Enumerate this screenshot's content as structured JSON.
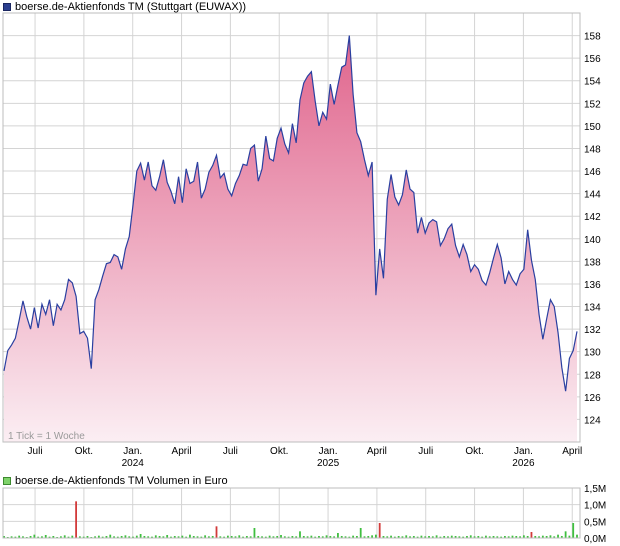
{
  "price_legend": "boerse.de-Aktienfonds TM (Stuttgart (EUWAX))",
  "volume_legend": "boerse.de-Aktienfonds TM Volumen in Euro",
  "tick_note": "1 Tick = 1 Woche",
  "colors": {
    "line": "#2a3fa0",
    "fill_top": "#e0648c",
    "fill_bottom": "#fbeef3",
    "grid": "#d4d4d4",
    "volume_bar": "#3fbf3f",
    "volume_bar_down": "#d23a3a"
  },
  "chart_data": [
    {
      "type": "area",
      "title": "boerse.de-Aktienfonds TM (Stuttgart (EUWAX))",
      "ylim": [
        122,
        160
      ],
      "y_ticks": [
        124,
        126,
        128,
        130,
        132,
        134,
        136,
        138,
        140,
        142,
        144,
        146,
        148,
        150,
        152,
        154,
        156,
        158
      ],
      "x_ticks": [
        {
          "label": "Juli",
          "sub": "",
          "week": 8
        },
        {
          "label": "Okt.",
          "sub": "",
          "week": 21
        },
        {
          "label": "Jan.",
          "sub": "2024",
          "week": 34
        },
        {
          "label": "April",
          "sub": "",
          "week": 47
        },
        {
          "label": "Juli",
          "sub": "",
          "week": 60
        },
        {
          "label": "Okt.",
          "sub": "",
          "week": 73
        },
        {
          "label": "Jan.",
          "sub": "2025",
          "week": 86
        },
        {
          "label": "April",
          "sub": "",
          "week": 99
        },
        {
          "label": "Juli",
          "sub": "",
          "week": 112
        },
        {
          "label": "Okt.",
          "sub": "",
          "week": 125
        },
        {
          "label": "Jan.",
          "sub": "2026",
          "week": 138
        },
        {
          "label": "April",
          "sub": "",
          "week": 151
        }
      ],
      "x_range": [
        0,
        152
      ],
      "values": [
        128.3,
        130.1,
        130.6,
        131.2,
        132.8,
        134.5,
        133.1,
        132.0,
        133.9,
        132.1,
        134.2,
        133.3,
        134.6,
        132.3,
        134.2,
        133.7,
        134.6,
        136.4,
        136.1,
        134.9,
        131.6,
        131.8,
        131.2,
        128.5,
        134.6,
        135.5,
        136.7,
        137.8,
        137.9,
        138.6,
        138.4,
        137.3,
        139.1,
        140.2,
        143.0,
        146.0,
        146.7,
        145.2,
        146.8,
        144.7,
        144.3,
        145.5,
        147.0,
        145.0,
        144.2,
        143.1,
        145.5,
        143.2,
        146.2,
        144.9,
        145.1,
        146.8,
        143.6,
        144.4,
        145.9,
        146.5,
        147.4,
        145.4,
        145.8,
        144.4,
        143.8,
        144.9,
        145.6,
        146.6,
        146.5,
        148.0,
        148.3,
        145.1,
        146.2,
        149.1,
        147.1,
        146.9,
        148.9,
        149.8,
        148.4,
        147.6,
        150.2,
        148.5,
        152.3,
        153.8,
        154.4,
        154.8,
        152.2,
        150.0,
        151.2,
        150.6,
        153.7,
        151.9,
        153.6,
        155.2,
        155.4,
        158.0,
        152.8,
        149.4,
        148.6,
        147.0,
        145.6,
        146.8,
        135.0,
        139.1,
        136.5,
        143.5,
        145.7,
        143.7,
        143.0,
        143.9,
        146.1,
        144.4,
        144.1,
        140.5,
        141.9,
        140.5,
        141.4,
        141.7,
        141.5,
        139.4,
        140.0,
        140.9,
        141.3,
        139.4,
        138.4,
        139.5,
        138.6,
        137.1,
        137.7,
        137.3,
        136.3,
        135.9,
        137.0,
        138.3,
        139.5,
        138.3,
        136.0,
        137.1,
        136.4,
        135.9,
        136.9,
        137.3,
        140.8,
        138.1,
        136.4,
        133.3,
        131.1,
        132.9,
        134.6,
        134.0,
        131.7,
        128.6,
        126.5,
        129.4,
        130.1,
        131.8
      ]
    },
    {
      "type": "bar",
      "title": "boerse.de-Aktienfonds TM Volumen in Euro",
      "ylabel": "Volumen in Euro",
      "ylim": [
        0,
        1.5
      ],
      "y_ticks": [
        {
          "value": 0,
          "label": "0,0M"
        },
        {
          "value": 0.5,
          "label": "0,5M"
        },
        {
          "value": 1.0,
          "label": "1,0M"
        },
        {
          "value": 1.5,
          "label": "1,5M"
        }
      ],
      "values": [
        0.06,
        0.03,
        0.05,
        0.04,
        0.07,
        0.05,
        0.03,
        0.06,
        0.1,
        0.04,
        0.05,
        0.09,
        0.04,
        0.06,
        0.03,
        0.05,
        0.08,
        0.04,
        0.07,
        1.1,
        0.05,
        0.04,
        0.06,
        0.03,
        0.05,
        0.07,
        0.04,
        0.06,
        0.1,
        0.05,
        0.04,
        0.06,
        0.08,
        0.05,
        0.04,
        0.07,
        0.12,
        0.06,
        0.05,
        0.04,
        0.08,
        0.06,
        0.05,
        0.09,
        0.04,
        0.06,
        0.05,
        0.07,
        0.04,
        0.1,
        0.06,
        0.05,
        0.04,
        0.08,
        0.05,
        0.06,
        0.35,
        0.05,
        0.04,
        0.07,
        0.06,
        0.05,
        0.08,
        0.04,
        0.06,
        0.05,
        0.3,
        0.06,
        0.05,
        0.04,
        0.07,
        0.05,
        0.06,
        0.09,
        0.05,
        0.04,
        0.06,
        0.05,
        0.2,
        0.06,
        0.05,
        0.07,
        0.04,
        0.06,
        0.05,
        0.08,
        0.06,
        0.05,
        0.15,
        0.06,
        0.05,
        0.04,
        0.07,
        0.06,
        0.3,
        0.05,
        0.06,
        0.08,
        0.1,
        0.45,
        0.06,
        0.05,
        0.07,
        0.04,
        0.06,
        0.05,
        0.08,
        0.05,
        0.06,
        0.04,
        0.07,
        0.05,
        0.06,
        0.05,
        0.08,
        0.04,
        0.06,
        0.05,
        0.07,
        0.06,
        0.05,
        0.04,
        0.06,
        0.08,
        0.05,
        0.06,
        0.04,
        0.07,
        0.05,
        0.06,
        0.05,
        0.04,
        0.06,
        0.05,
        0.07,
        0.06,
        0.05,
        0.08,
        0.06,
        0.18,
        0.06,
        0.05,
        0.07,
        0.06,
        0.08,
        0.05,
        0.1,
        0.06,
        0.2,
        0.07,
        0.45,
        0.1
      ],
      "red_bars": [
        19,
        56,
        99,
        139
      ]
    }
  ]
}
